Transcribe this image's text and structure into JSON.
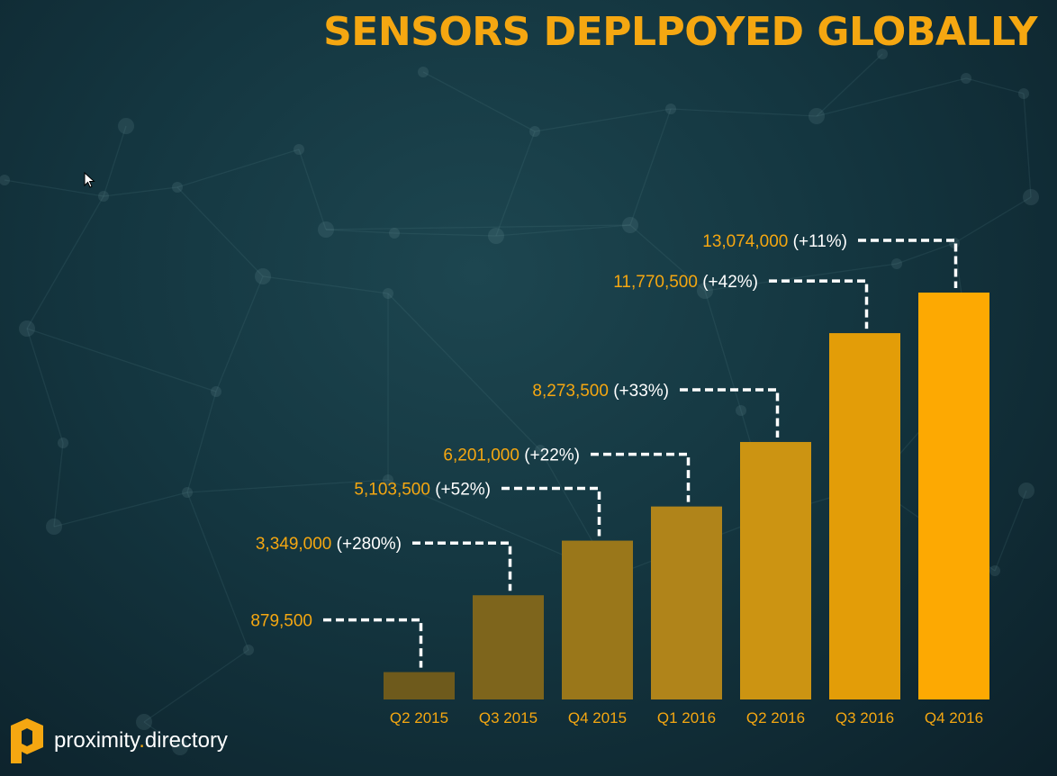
{
  "title": "SENSORS DEPLPOYED GLOBALLY",
  "logo": {
    "name": "proximity",
    "separator": ".",
    "suffix": "directory",
    "icon": "proximity-p-logo-icon"
  },
  "colors": {
    "accent": "#f5a711",
    "annotation_white": "#ffffff"
  },
  "chart_data": {
    "type": "bar",
    "categories": [
      "Q2 2015",
      "Q3 2015",
      "Q4 2015",
      "Q1 2016",
      "Q2 2016",
      "Q3 2016",
      "Q4 2016"
    ],
    "values": [
      879500,
      3349000,
      5103500,
      6201000,
      8273500,
      11770500,
      13074000
    ],
    "value_labels": [
      "879,500",
      "3,349,000",
      "5,103,500",
      "6,201,000",
      "8,273,500",
      "11,770,500",
      "13,074,000"
    ],
    "growth_labels": [
      "",
      "(+280%)",
      "(+52%)",
      "(+22%)",
      "(+33%)",
      "(+42%)",
      "(+11%)"
    ],
    "bar_colors": [
      "#6e5a1c",
      "#7e651c",
      "#9a771a",
      "#b0841a",
      "#cc9412",
      "#e39d08",
      "#fda902"
    ],
    "xlabel": "",
    "ylabel": "",
    "ylim": [
      0,
      14000000
    ],
    "grid": false,
    "legend": "none"
  }
}
